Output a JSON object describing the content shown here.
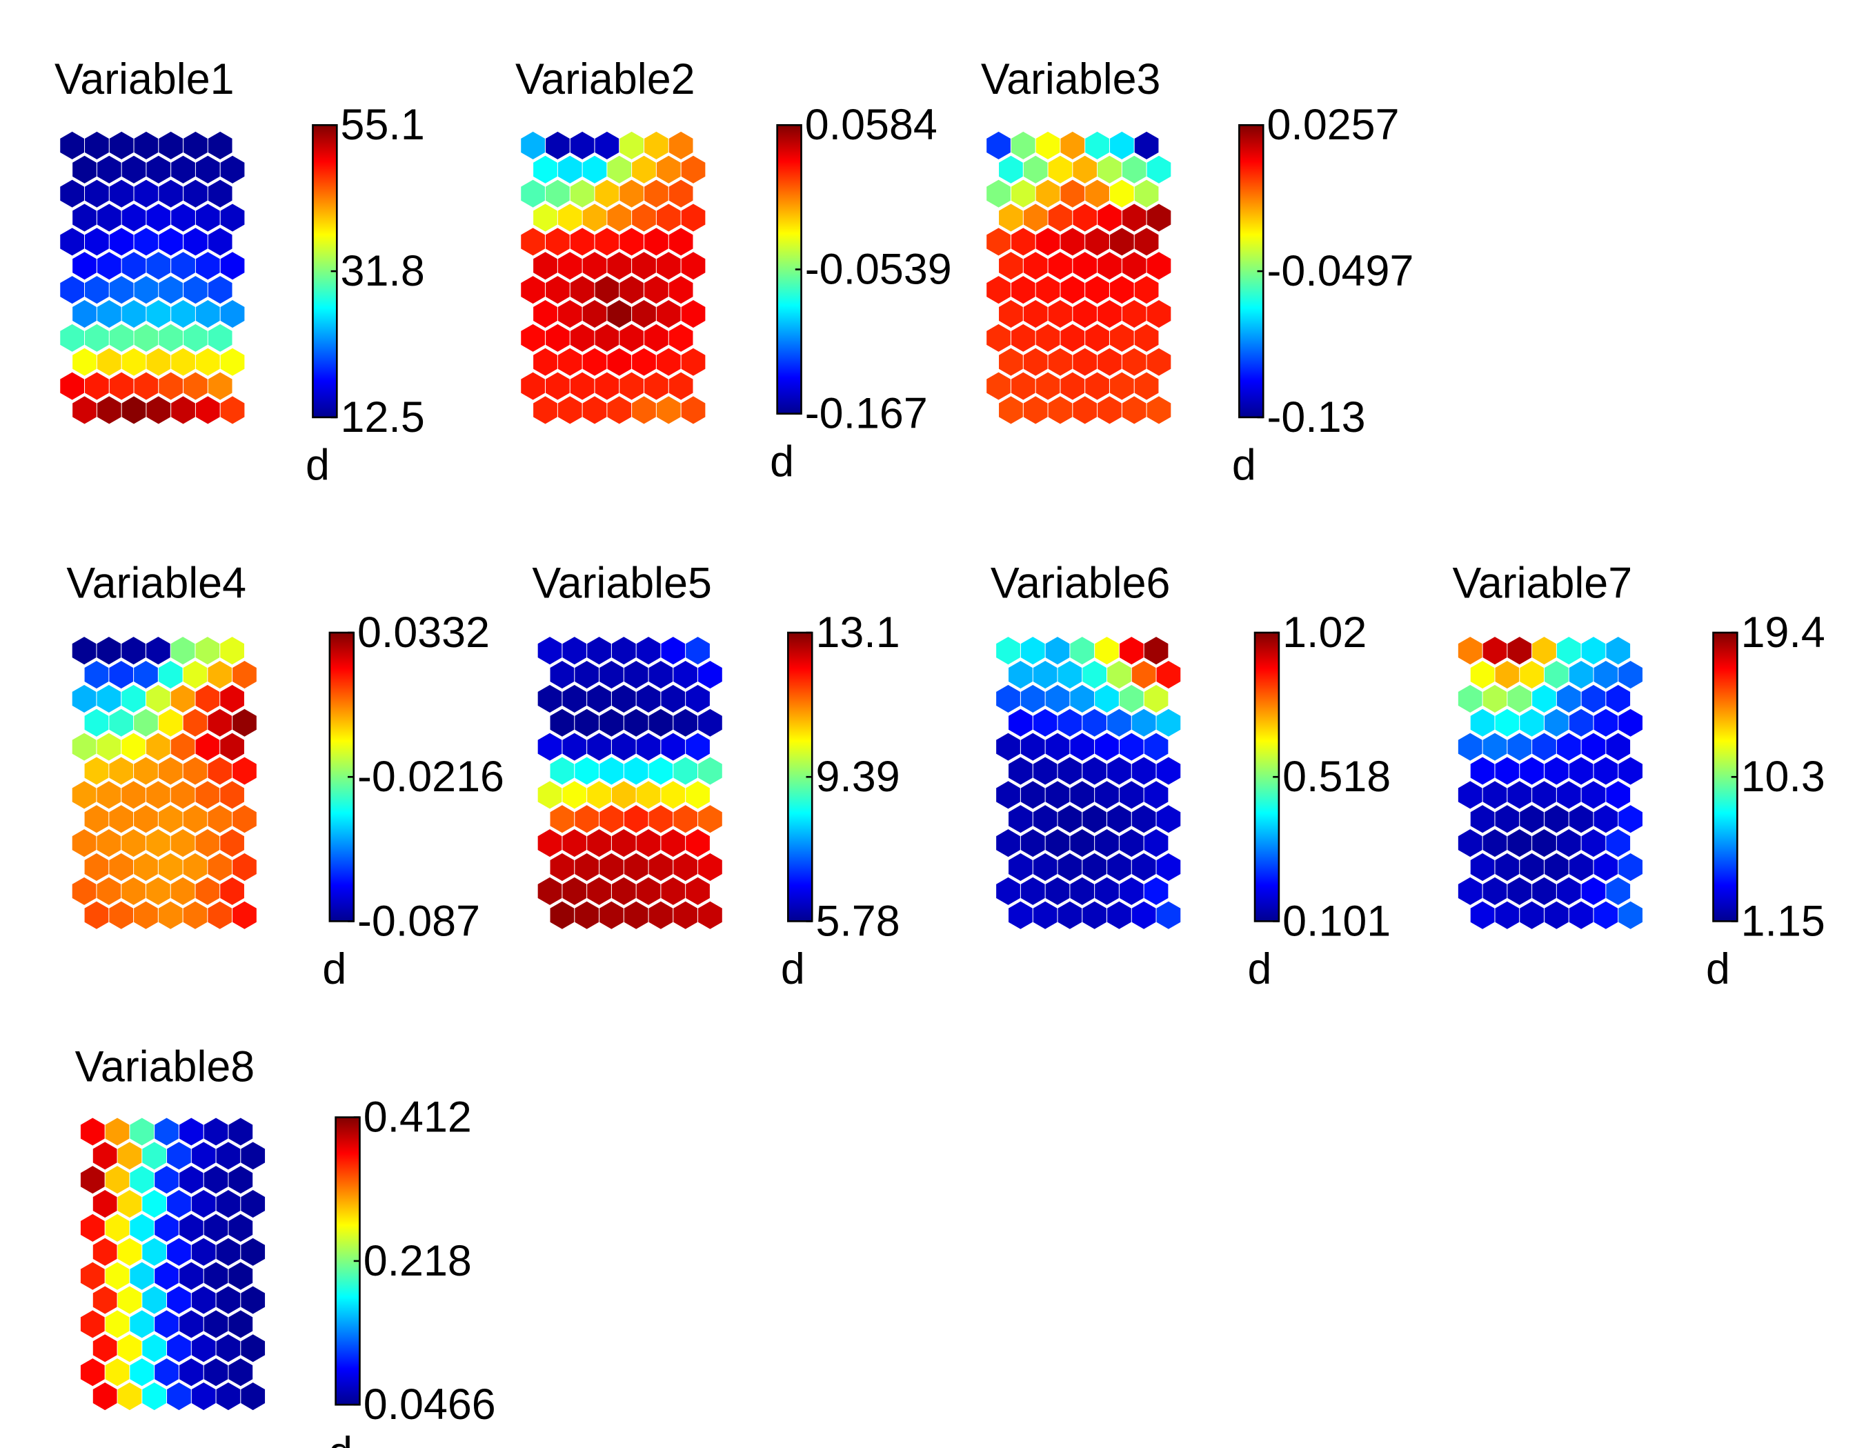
{
  "chart_data": [
    {
      "type": "heatmap",
      "title": "Variable1",
      "colorbar": {
        "max": "55.1",
        "mid": "31.8",
        "min": "12.5",
        "label": "d"
      },
      "value_range": [
        12.5,
        55.1
      ],
      "colormap": "jet",
      "grid": {
        "rows": 12,
        "cols": 7,
        "layout": "hexagonal"
      },
      "values": [
        [
          0.02,
          0.02,
          0.02,
          0.02,
          0.02,
          0.02,
          0.02
        ],
        [
          0.02,
          0.03,
          0.03,
          0.03,
          0.03,
          0.03,
          0.03
        ],
        [
          0.04,
          0.05,
          0.06,
          0.07,
          0.06,
          0.05,
          0.04
        ],
        [
          0.06,
          0.07,
          0.09,
          0.1,
          0.09,
          0.08,
          0.07
        ],
        [
          0.08,
          0.1,
          0.12,
          0.14,
          0.13,
          0.11,
          0.09
        ],
        [
          0.12,
          0.14,
          0.17,
          0.19,
          0.18,
          0.15,
          0.12
        ],
        [
          0.18,
          0.2,
          0.22,
          0.24,
          0.23,
          0.21,
          0.19
        ],
        [
          0.26,
          0.28,
          0.3,
          0.32,
          0.31,
          0.29,
          0.27
        ],
        [
          0.44,
          0.45,
          0.46,
          0.47,
          0.46,
          0.45,
          0.44
        ],
        [
          0.62,
          0.66,
          0.64,
          0.66,
          0.65,
          0.64,
          0.62
        ],
        [
          0.88,
          0.85,
          0.84,
          0.83,
          0.8,
          0.78,
          0.74
        ],
        [
          0.92,
          0.97,
          0.99,
          0.97,
          0.93,
          0.9,
          0.82
        ]
      ]
    },
    {
      "type": "heatmap",
      "title": "Variable2",
      "colorbar": {
        "max": "0.0584",
        "mid": "-0.0539",
        "min": "-0.167",
        "label": "d"
      },
      "value_range": [
        -0.167,
        0.0584
      ],
      "colormap": "jet",
      "grid": {
        "rows": 12,
        "cols": 7,
        "layout": "hexagonal"
      },
      "values": [
        [
          0.3,
          0.05,
          0.06,
          0.07,
          0.58,
          0.68,
          0.75
        ],
        [
          0.38,
          0.35,
          0.36,
          0.55,
          0.68,
          0.74,
          0.78
        ],
        [
          0.45,
          0.48,
          0.55,
          0.68,
          0.74,
          0.78,
          0.8
        ],
        [
          0.6,
          0.65,
          0.7,
          0.75,
          0.79,
          0.82,
          0.84
        ],
        [
          0.84,
          0.85,
          0.86,
          0.86,
          0.87,
          0.88,
          0.88
        ],
        [
          0.9,
          0.89,
          0.9,
          0.91,
          0.91,
          0.9,
          0.89
        ],
        [
          0.89,
          0.9,
          0.92,
          0.96,
          0.93,
          0.91,
          0.89
        ],
        [
          0.88,
          0.9,
          0.93,
          0.98,
          0.94,
          0.91,
          0.88
        ],
        [
          0.87,
          0.88,
          0.9,
          0.91,
          0.9,
          0.89,
          0.87
        ],
        [
          0.86,
          0.86,
          0.87,
          0.88,
          0.87,
          0.86,
          0.85
        ],
        [
          0.85,
          0.85,
          0.85,
          0.85,
          0.84,
          0.84,
          0.84
        ],
        [
          0.84,
          0.84,
          0.84,
          0.83,
          0.78,
          0.76,
          0.8
        ]
      ]
    },
    {
      "type": "heatmap",
      "title": "Variable3",
      "colorbar": {
        "max": "0.0257",
        "mid": "-0.0497",
        "min": "-0.13",
        "label": "d"
      },
      "value_range": [
        -0.13,
        0.0257
      ],
      "colormap": "jet",
      "grid": {
        "rows": 12,
        "cols": 7,
        "layout": "hexagonal"
      },
      "values": [
        [
          0.18,
          0.5,
          0.62,
          0.72,
          0.4,
          0.35,
          0.05
        ],
        [
          0.4,
          0.5,
          0.65,
          0.7,
          0.55,
          0.48,
          0.4
        ],
        [
          0.5,
          0.58,
          0.7,
          0.78,
          0.74,
          0.62,
          0.55
        ],
        [
          0.7,
          0.75,
          0.82,
          0.85,
          0.88,
          0.93,
          0.96
        ],
        [
          0.82,
          0.85,
          0.88,
          0.9,
          0.92,
          0.95,
          0.94
        ],
        [
          0.84,
          0.86,
          0.87,
          0.88,
          0.89,
          0.9,
          0.88
        ],
        [
          0.85,
          0.86,
          0.86,
          0.87,
          0.87,
          0.87,
          0.86
        ],
        [
          0.84,
          0.85,
          0.85,
          0.86,
          0.86,
          0.85,
          0.85
        ],
        [
          0.83,
          0.84,
          0.84,
          0.85,
          0.85,
          0.84,
          0.84
        ],
        [
          0.82,
          0.83,
          0.83,
          0.84,
          0.84,
          0.83,
          0.83
        ],
        [
          0.81,
          0.82,
          0.82,
          0.83,
          0.83,
          0.82,
          0.82
        ],
        [
          0.8,
          0.81,
          0.81,
          0.82,
          0.82,
          0.81,
          0.8
        ]
      ]
    },
    {
      "type": "heatmap",
      "title": "Variable4",
      "colorbar": {
        "max": "0.0332",
        "mid": "-0.0216",
        "min": "-0.087",
        "label": "d"
      },
      "value_range": [
        -0.087,
        0.0332
      ],
      "colormap": "jet",
      "grid": {
        "rows": 12,
        "cols": 7,
        "layout": "hexagonal"
      },
      "values": [
        [
          0.02,
          0.02,
          0.03,
          0.04,
          0.5,
          0.55,
          0.6
        ],
        [
          0.2,
          0.18,
          0.2,
          0.4,
          0.6,
          0.7,
          0.78
        ],
        [
          0.3,
          0.32,
          0.4,
          0.58,
          0.72,
          0.82,
          0.9
        ],
        [
          0.4,
          0.42,
          0.5,
          0.64,
          0.8,
          0.92,
          0.98
        ],
        [
          0.55,
          0.58,
          0.62,
          0.7,
          0.78,
          0.88,
          0.93
        ],
        [
          0.68,
          0.7,
          0.72,
          0.74,
          0.76,
          0.82,
          0.86
        ],
        [
          0.72,
          0.73,
          0.74,
          0.74,
          0.75,
          0.78,
          0.8
        ],
        [
          0.74,
          0.74,
          0.74,
          0.73,
          0.74,
          0.76,
          0.78
        ],
        [
          0.75,
          0.74,
          0.73,
          0.72,
          0.73,
          0.76,
          0.8
        ],
        [
          0.76,
          0.75,
          0.73,
          0.72,
          0.73,
          0.77,
          0.82
        ],
        [
          0.78,
          0.76,
          0.74,
          0.73,
          0.74,
          0.78,
          0.84
        ],
        [
          0.8,
          0.78,
          0.76,
          0.74,
          0.76,
          0.8,
          0.86
        ]
      ]
    },
    {
      "type": "heatmap",
      "title": "Variable5",
      "colorbar": {
        "max": "13.1",
        "mid": "9.39",
        "min": "5.78",
        "label": "d"
      },
      "value_range": [
        5.78,
        13.1
      ],
      "colormap": "jet",
      "grid": {
        "rows": 12,
        "cols": 7,
        "layout": "hexagonal"
      },
      "values": [
        [
          0.08,
          0.07,
          0.06,
          0.06,
          0.07,
          0.12,
          0.18
        ],
        [
          0.06,
          0.05,
          0.05,
          0.05,
          0.06,
          0.08,
          0.12
        ],
        [
          0.03,
          0.03,
          0.03,
          0.03,
          0.04,
          0.05,
          0.07
        ],
        [
          0.02,
          0.02,
          0.02,
          0.02,
          0.02,
          0.03,
          0.05
        ],
        [
          0.1,
          0.08,
          0.07,
          0.07,
          0.08,
          0.1,
          0.14
        ],
        [
          0.4,
          0.38,
          0.36,
          0.36,
          0.38,
          0.42,
          0.45
        ],
        [
          0.6,
          0.62,
          0.65,
          0.68,
          0.66,
          0.64,
          0.62
        ],
        [
          0.78,
          0.8,
          0.82,
          0.84,
          0.82,
          0.8,
          0.78
        ],
        [
          0.9,
          0.91,
          0.92,
          0.92,
          0.91,
          0.9,
          0.88
        ],
        [
          0.93,
          0.94,
          0.94,
          0.94,
          0.93,
          0.92,
          0.9
        ],
        [
          0.96,
          0.96,
          0.95,
          0.95,
          0.94,
          0.93,
          0.92
        ],
        [
          0.98,
          0.97,
          0.96,
          0.96,
          0.95,
          0.94,
          0.93
        ]
      ]
    },
    {
      "type": "heatmap",
      "title": "Variable6",
      "colorbar": {
        "max": "1.02",
        "mid": "0.518",
        "min": "0.101",
        "label": "d"
      },
      "value_range": [
        0.101,
        1.02
      ],
      "colormap": "jet",
      "grid": {
        "rows": 12,
        "cols": 7,
        "layout": "hexagonal"
      },
      "values": [
        [
          0.4,
          0.35,
          0.3,
          0.45,
          0.62,
          0.88,
          0.97
        ],
        [
          0.3,
          0.3,
          0.32,
          0.4,
          0.55,
          0.78,
          0.86
        ],
        [
          0.2,
          0.22,
          0.24,
          0.28,
          0.35,
          0.48,
          0.58
        ],
        [
          0.12,
          0.14,
          0.16,
          0.18,
          0.22,
          0.28,
          0.32
        ],
        [
          0.06,
          0.07,
          0.08,
          0.1,
          0.12,
          0.14,
          0.16
        ],
        [
          0.05,
          0.05,
          0.05,
          0.06,
          0.07,
          0.08,
          0.1
        ],
        [
          0.05,
          0.04,
          0.04,
          0.04,
          0.05,
          0.06,
          0.08
        ],
        [
          0.05,
          0.04,
          0.03,
          0.03,
          0.04,
          0.05,
          0.08
        ],
        [
          0.05,
          0.04,
          0.03,
          0.03,
          0.04,
          0.05,
          0.08
        ],
        [
          0.06,
          0.05,
          0.04,
          0.04,
          0.05,
          0.06,
          0.1
        ],
        [
          0.07,
          0.06,
          0.05,
          0.05,
          0.06,
          0.08,
          0.14
        ],
        [
          0.08,
          0.07,
          0.06,
          0.06,
          0.07,
          0.1,
          0.18
        ]
      ]
    },
    {
      "type": "heatmap",
      "title": "Variable7",
      "colorbar": {
        "max": "19.4",
        "mid": "10.3",
        "min": "1.15",
        "label": "d"
      },
      "value_range": [
        1.15,
        19.4
      ],
      "colormap": "jet",
      "grid": {
        "rows": 12,
        "cols": 7,
        "layout": "hexagonal"
      },
      "values": [
        [
          0.75,
          0.92,
          0.95,
          0.68,
          0.4,
          0.35,
          0.3
        ],
        [
          0.62,
          0.7,
          0.65,
          0.45,
          0.3,
          0.25,
          0.22
        ],
        [
          0.48,
          0.55,
          0.5,
          0.36,
          0.24,
          0.18,
          0.15
        ],
        [
          0.35,
          0.38,
          0.35,
          0.26,
          0.18,
          0.14,
          0.12
        ],
        [
          0.22,
          0.24,
          0.22,
          0.18,
          0.14,
          0.12,
          0.1
        ],
        [
          0.12,
          0.12,
          0.12,
          0.11,
          0.1,
          0.1,
          0.1
        ],
        [
          0.08,
          0.07,
          0.07,
          0.07,
          0.08,
          0.09,
          0.12
        ],
        [
          0.06,
          0.05,
          0.04,
          0.04,
          0.05,
          0.08,
          0.14
        ],
        [
          0.06,
          0.04,
          0.03,
          0.03,
          0.05,
          0.08,
          0.16
        ],
        [
          0.07,
          0.05,
          0.04,
          0.04,
          0.06,
          0.1,
          0.18
        ],
        [
          0.08,
          0.06,
          0.05,
          0.05,
          0.07,
          0.12,
          0.2
        ],
        [
          0.1,
          0.08,
          0.07,
          0.07,
          0.09,
          0.14,
          0.22
        ]
      ]
    },
    {
      "type": "heatmap",
      "title": "Variable8",
      "colorbar": {
        "max": "0.412",
        "mid": "0.218",
        "min": "0.0466",
        "label": "d"
      },
      "value_range": [
        0.0466,
        0.412
      ],
      "colormap": "jet",
      "grid": {
        "rows": 12,
        "cols": 7,
        "layout": "hexagonal"
      },
      "values": [
        [
          0.88,
          0.72,
          0.45,
          0.2,
          0.1,
          0.06,
          0.04
        ],
        [
          0.9,
          0.7,
          0.42,
          0.18,
          0.08,
          0.05,
          0.03
        ],
        [
          0.95,
          0.68,
          0.4,
          0.17,
          0.07,
          0.04,
          0.03
        ],
        [
          0.9,
          0.66,
          0.38,
          0.16,
          0.07,
          0.04,
          0.03
        ],
        [
          0.86,
          0.64,
          0.36,
          0.15,
          0.06,
          0.04,
          0.03
        ],
        [
          0.85,
          0.63,
          0.35,
          0.14,
          0.06,
          0.03,
          0.02
        ],
        [
          0.84,
          0.62,
          0.34,
          0.14,
          0.06,
          0.03,
          0.02
        ],
        [
          0.84,
          0.62,
          0.34,
          0.14,
          0.06,
          0.03,
          0.02
        ],
        [
          0.85,
          0.62,
          0.35,
          0.15,
          0.06,
          0.03,
          0.02
        ],
        [
          0.86,
          0.63,
          0.36,
          0.15,
          0.07,
          0.04,
          0.02
        ],
        [
          0.87,
          0.64,
          0.37,
          0.16,
          0.07,
          0.04,
          0.03
        ],
        [
          0.88,
          0.65,
          0.38,
          0.17,
          0.08,
          0.05,
          0.03
        ]
      ]
    }
  ]
}
